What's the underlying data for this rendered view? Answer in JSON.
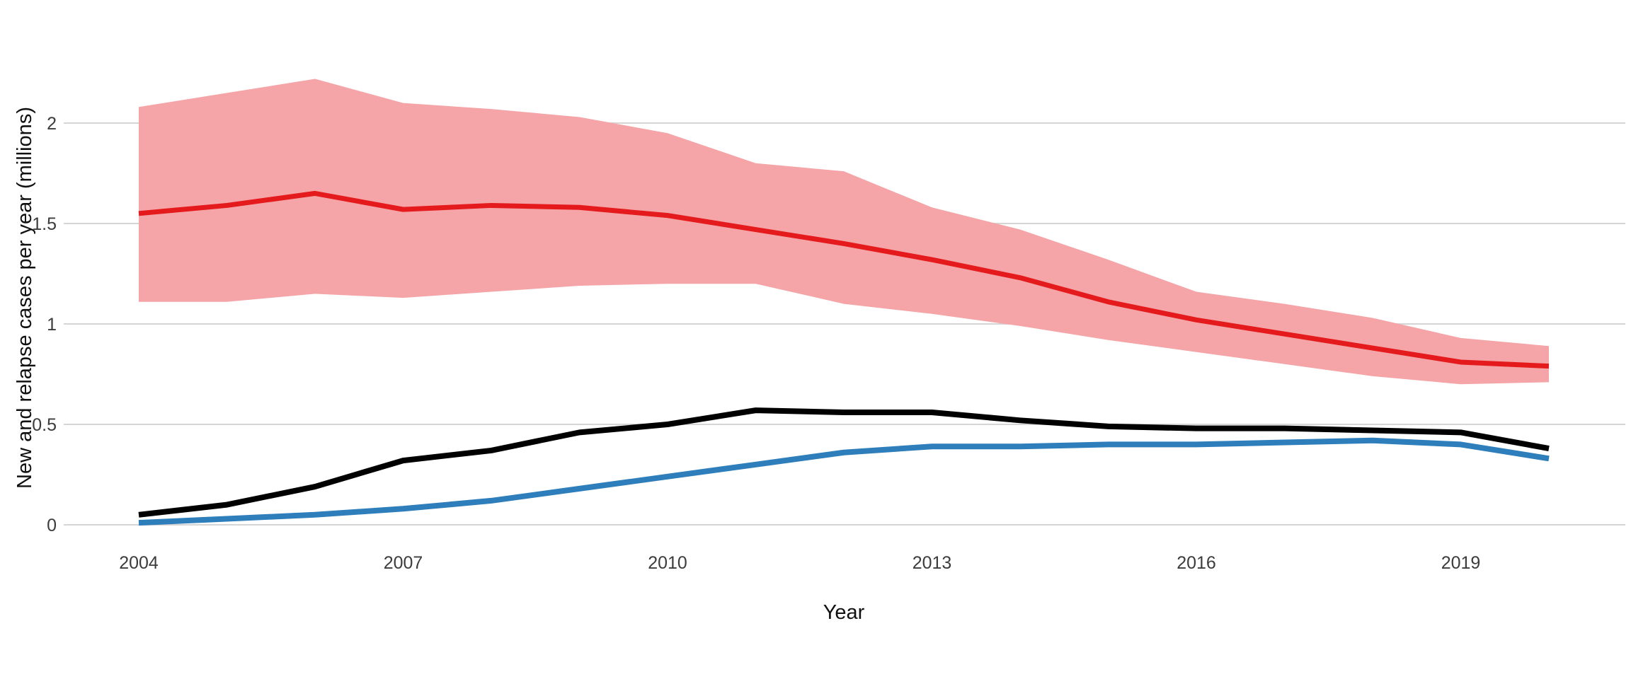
{
  "page": {
    "background_color": "#FFFFFF"
  },
  "chart_data": {
    "type": "line",
    "title": "",
    "xlabel": "Year",
    "ylabel": "New and relapse cases per year (millions)",
    "x": [
      2004,
      2005,
      2006,
      2007,
      2008,
      2009,
      2010,
      2011,
      2012,
      2013,
      2014,
      2015,
      2016,
      2017,
      2018,
      2019,
      2020
    ],
    "xlim": [
      2004,
      2020
    ],
    "ylim": [
      0,
      2.3
    ],
    "x_ticks": [
      {
        "value": 2004,
        "label": "2004"
      },
      {
        "value": 2007,
        "label": "2007"
      },
      {
        "value": 2010,
        "label": "2010"
      },
      {
        "value": 2013,
        "label": "2013"
      },
      {
        "value": 2016,
        "label": "2016"
      },
      {
        "value": 2019,
        "label": "2019"
      }
    ],
    "y_ticks": [
      {
        "value": 0,
        "label": "0"
      },
      {
        "value": 0.5,
        "label": "0.5"
      },
      {
        "value": 1,
        "label": "1"
      },
      {
        "value": 1.5,
        "label": "1.5"
      },
      {
        "value": 2,
        "label": "2"
      }
    ],
    "grid": {
      "horizontal": true,
      "vertical": false,
      "color": "#D5D5D5"
    },
    "legend": "none",
    "axis_text_color": "#3C3C3C",
    "series": [
      {
        "name": "red-uncertainty-band",
        "kind": "band",
        "color": "#F5A4A7",
        "hi": [
          2.08,
          2.15,
          2.22,
          2.1,
          2.07,
          2.03,
          1.95,
          1.8,
          1.76,
          1.58,
          1.47,
          1.32,
          1.16,
          1.1,
          1.03,
          0.93,
          0.89
        ],
        "lo": [
          1.11,
          1.11,
          1.15,
          1.13,
          1.16,
          1.19,
          1.2,
          1.2,
          1.1,
          1.05,
          0.99,
          0.92,
          0.86,
          0.8,
          0.74,
          0.7,
          0.71
        ]
      },
      {
        "name": "red-line",
        "kind": "line",
        "color": "#E41A1C",
        "values": [
          1.55,
          1.59,
          1.65,
          1.57,
          1.59,
          1.58,
          1.54,
          1.47,
          1.4,
          1.32,
          1.23,
          1.11,
          1.02,
          0.95,
          0.88,
          0.81,
          0.79
        ]
      },
      {
        "name": "black-line",
        "kind": "line",
        "color": "#000000",
        "values": [
          0.05,
          0.1,
          0.19,
          0.32,
          0.37,
          0.46,
          0.5,
          0.57,
          0.56,
          0.56,
          0.52,
          0.49,
          0.48,
          0.48,
          0.47,
          0.46,
          0.38
        ]
      },
      {
        "name": "blue-line",
        "kind": "line",
        "color": "#2E7EBC",
        "values": [
          0.01,
          0.03,
          0.05,
          0.08,
          0.12,
          0.18,
          0.24,
          0.3,
          0.36,
          0.39,
          0.39,
          0.4,
          0.4,
          0.41,
          0.42,
          0.4,
          0.33
        ]
      }
    ]
  }
}
